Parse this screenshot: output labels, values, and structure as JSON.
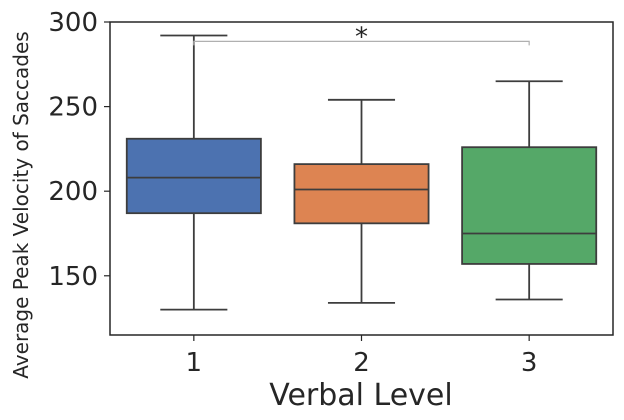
{
  "chart_data": {
    "type": "box",
    "xlabel": "Verbal Level",
    "ylabel": "Average Peak Velocity of Saccades",
    "ylim": [
      115,
      300
    ],
    "yticks": [
      150,
      200,
      250,
      300
    ],
    "categories": [
      "1",
      "2",
      "3"
    ],
    "grid": false,
    "legend": "none",
    "boxes": [
      {
        "category": "1",
        "whisker_low": 130,
        "q1": 187,
        "median": 208,
        "q3": 231,
        "whisker_high": 292,
        "color": "#4c72b0"
      },
      {
        "category": "2",
        "whisker_low": 134,
        "q1": 181,
        "median": 201,
        "q3": 216,
        "whisker_high": 254,
        "color": "#dd8452"
      },
      {
        "category": "3",
        "whisker_low": 136,
        "q1": 157,
        "median": 175,
        "q3": 226,
        "whisker_high": 265,
        "color": "#55a868"
      }
    ],
    "annotations": [
      {
        "text": "*",
        "from": "1",
        "to": "3",
        "y": 285
      }
    ]
  }
}
